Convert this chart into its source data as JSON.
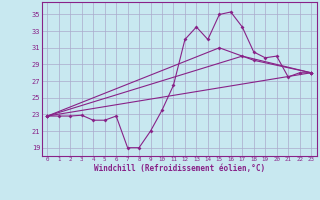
{
  "xlabel": "Windchill (Refroidissement éolien,°C)",
  "bg_color": "#c8e8f0",
  "grid_color": "#aaaacc",
  "line_color": "#882288",
  "xlim": [
    -0.5,
    23.5
  ],
  "ylim": [
    18.0,
    36.5
  ],
  "yticks": [
    19,
    21,
    23,
    25,
    27,
    29,
    31,
    33,
    35
  ],
  "xticks": [
    0,
    1,
    2,
    3,
    4,
    5,
    6,
    7,
    8,
    9,
    10,
    11,
    12,
    13,
    14,
    15,
    16,
    17,
    18,
    19,
    20,
    21,
    22,
    23
  ],
  "main_x": [
    0,
    1,
    2,
    3,
    4,
    5,
    6,
    7,
    8,
    9,
    10,
    11,
    12,
    13,
    14,
    15,
    16,
    17,
    18,
    19,
    20,
    21,
    22,
    23
  ],
  "main_y": [
    22.8,
    22.8,
    22.8,
    22.9,
    22.3,
    22.3,
    22.8,
    19.0,
    19.0,
    21.0,
    23.5,
    26.5,
    32.0,
    33.5,
    32.0,
    35.0,
    35.3,
    33.5,
    30.5,
    29.8,
    30.0,
    27.5,
    28.0,
    28.0
  ],
  "line1_x": [
    0,
    23
  ],
  "line1_y": [
    22.8,
    28.0
  ],
  "line2_x": [
    0,
    17,
    23
  ],
  "line2_y": [
    22.8,
    30.0,
    28.0
  ],
  "line3_x": [
    0,
    15,
    18,
    23
  ],
  "line3_y": [
    22.8,
    31.0,
    29.5,
    28.0
  ],
  "marker_size": 2.0,
  "line_width": 0.8
}
